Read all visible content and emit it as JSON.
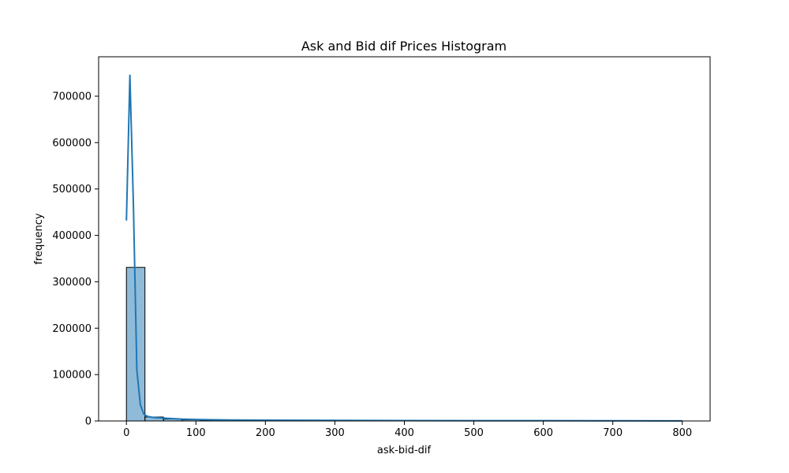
{
  "chart_data": {
    "type": "bar",
    "title": "Ask and Bid dif Prices Histogram",
    "xlabel": "ask-bid-dif",
    "ylabel": "frequency",
    "xlim": [
      -40,
      840
    ],
    "ylim": [
      0,
      785000
    ],
    "x_ticks": [
      0,
      100,
      200,
      300,
      400,
      500,
      600,
      700,
      800
    ],
    "y_ticks": [
      0,
      100000,
      200000,
      300000,
      400000,
      500000,
      600000,
      700000
    ],
    "grid": false,
    "legend": "none",
    "bins": {
      "edges": [
        0,
        26.67,
        53.33,
        80,
        106.67,
        133.33,
        160,
        186.67,
        213.33,
        240,
        266.67,
        293.33,
        320,
        346.67,
        373.33,
        400,
        426.67,
        453.33,
        480,
        506.67,
        533.33,
        560,
        586.67,
        613.33,
        640,
        666.67,
        693.33,
        720,
        746.67,
        773.33,
        800
      ],
      "counts": [
        331000,
        8500,
        4200,
        2500,
        1700,
        1200,
        900,
        700,
        550,
        450,
        380,
        320,
        270,
        230,
        200,
        170,
        150,
        130,
        115,
        100,
        90,
        80,
        70,
        62,
        55,
        50,
        45,
        40,
        36,
        32
      ]
    },
    "kde": {
      "x": [
        0,
        5,
        10,
        15,
        20,
        25,
        30,
        35,
        40,
        50,
        60,
        80,
        100,
        150,
        200,
        300,
        400,
        500,
        600,
        700,
        800
      ],
      "y": [
        432000,
        745000,
        470000,
        110000,
        35000,
        15000,
        10000,
        8500,
        7500,
        6500,
        5500,
        4000,
        3200,
        2200,
        1700,
        1200,
        900,
        700,
        550,
        400,
        300
      ]
    },
    "colors": {
      "bar_fill": "#1f77b4",
      "bar_fill_opacity": 0.5,
      "bar_edge": "#000000",
      "kde_line": "#1f77b4"
    }
  }
}
